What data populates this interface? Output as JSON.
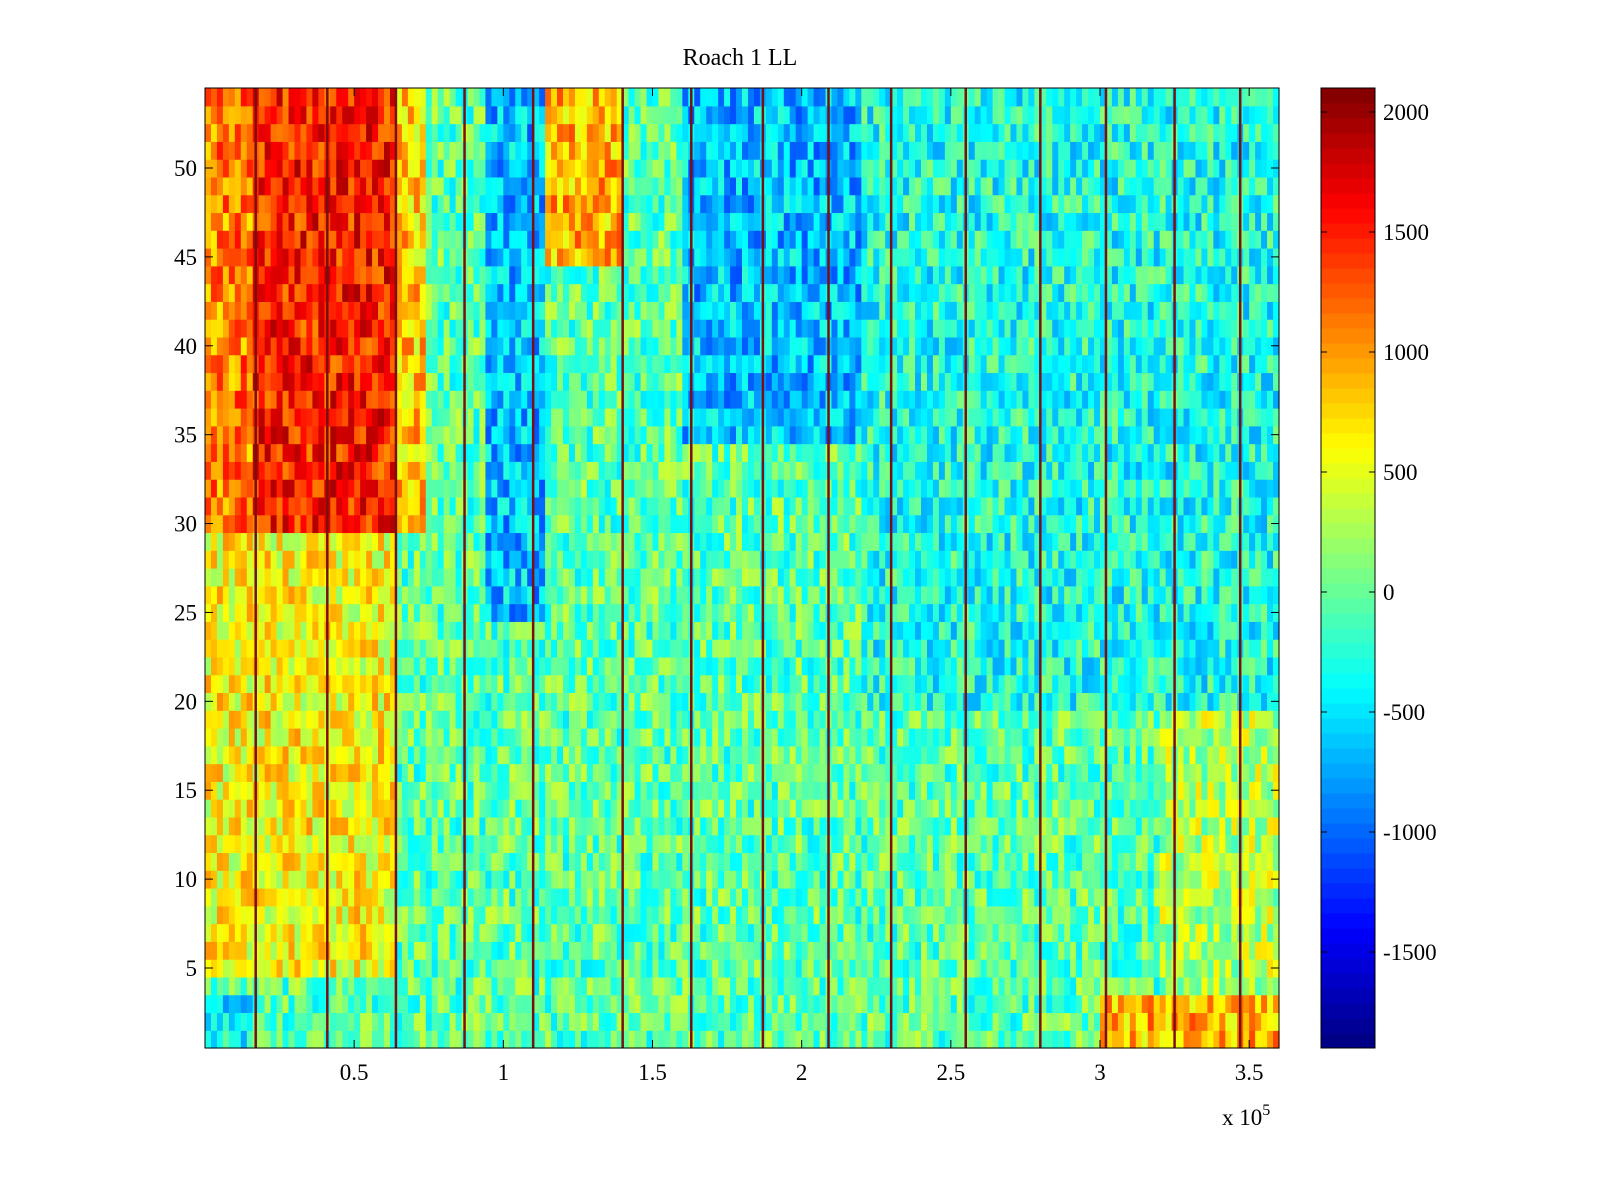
{
  "chart_data": {
    "type": "heatmap",
    "title": "Roach 1 LL",
    "xlabel": "",
    "ylabel": "",
    "x_range": [
      0,
      360000
    ],
    "y_range": [
      0.5,
      54.5
    ],
    "x_ticks": [
      50000,
      100000,
      150000,
      200000,
      250000,
      300000,
      350000
    ],
    "x_tick_labels": [
      "0.5",
      "1",
      "1.5",
      "2",
      "2.5",
      "3",
      "3.5"
    ],
    "x_exponent_label": "x 10",
    "x_exponent_power": "5",
    "y_ticks": [
      5,
      10,
      15,
      20,
      25,
      30,
      35,
      40,
      45,
      50
    ],
    "y_tick_labels": [
      "5",
      "10",
      "15",
      "20",
      "25",
      "30",
      "35",
      "40",
      "45",
      "50"
    ],
    "rows": 54,
    "colormap": "jet",
    "color_range": [
      -1900,
      2100
    ],
    "colorbar_ticks": [
      2000,
      1500,
      1000,
      500,
      0,
      -500,
      -1000,
      -1500
    ],
    "colorbar_tick_labels": [
      "2000",
      "1500",
      "1000",
      "500",
      "0",
      "-500",
      "-1000",
      "-1500"
    ],
    "boundary_lines_x": [
      17000,
      41000,
      64000,
      87000,
      110000,
      140000,
      163000,
      187000,
      209000,
      230000,
      255000,
      280000,
      302000,
      325000,
      347000
    ],
    "regions": [
      {
        "x": [
          0,
          17000
        ],
        "y": [
          30,
          54.5
        ],
        "value": 1100
      },
      {
        "x": [
          17000,
          65000
        ],
        "y": [
          30,
          54.5
        ],
        "value": 1500
      },
      {
        "x": [
          65000,
          75000
        ],
        "y": [
          30,
          54.5
        ],
        "value": 800
      },
      {
        "x": [
          0,
          65000
        ],
        "y": [
          5,
          30
        ],
        "value": 600
      },
      {
        "x": [
          0,
          17000
        ],
        "y": [
          0.5,
          4
        ],
        "value": -450
      },
      {
        "x": [
          95000,
          115000
        ],
        "y": [
          25,
          54.5
        ],
        "value": -650
      },
      {
        "x": [
          115000,
          140000
        ],
        "y": [
          45,
          54.5
        ],
        "value": 900
      },
      {
        "x": [
          160000,
          220000
        ],
        "y": [
          35,
          54.5
        ],
        "value": -650
      },
      {
        "x": [
          220000,
          360000
        ],
        "y": [
          20,
          54.5
        ],
        "value": -300
      },
      {
        "x": [
          300000,
          360000
        ],
        "y": [
          0.5,
          4
        ],
        "value": 900
      },
      {
        "x": [
          320000,
          360000
        ],
        "y": [
          4,
          20
        ],
        "value": 300
      }
    ],
    "background_value": -50,
    "grid": false
  }
}
